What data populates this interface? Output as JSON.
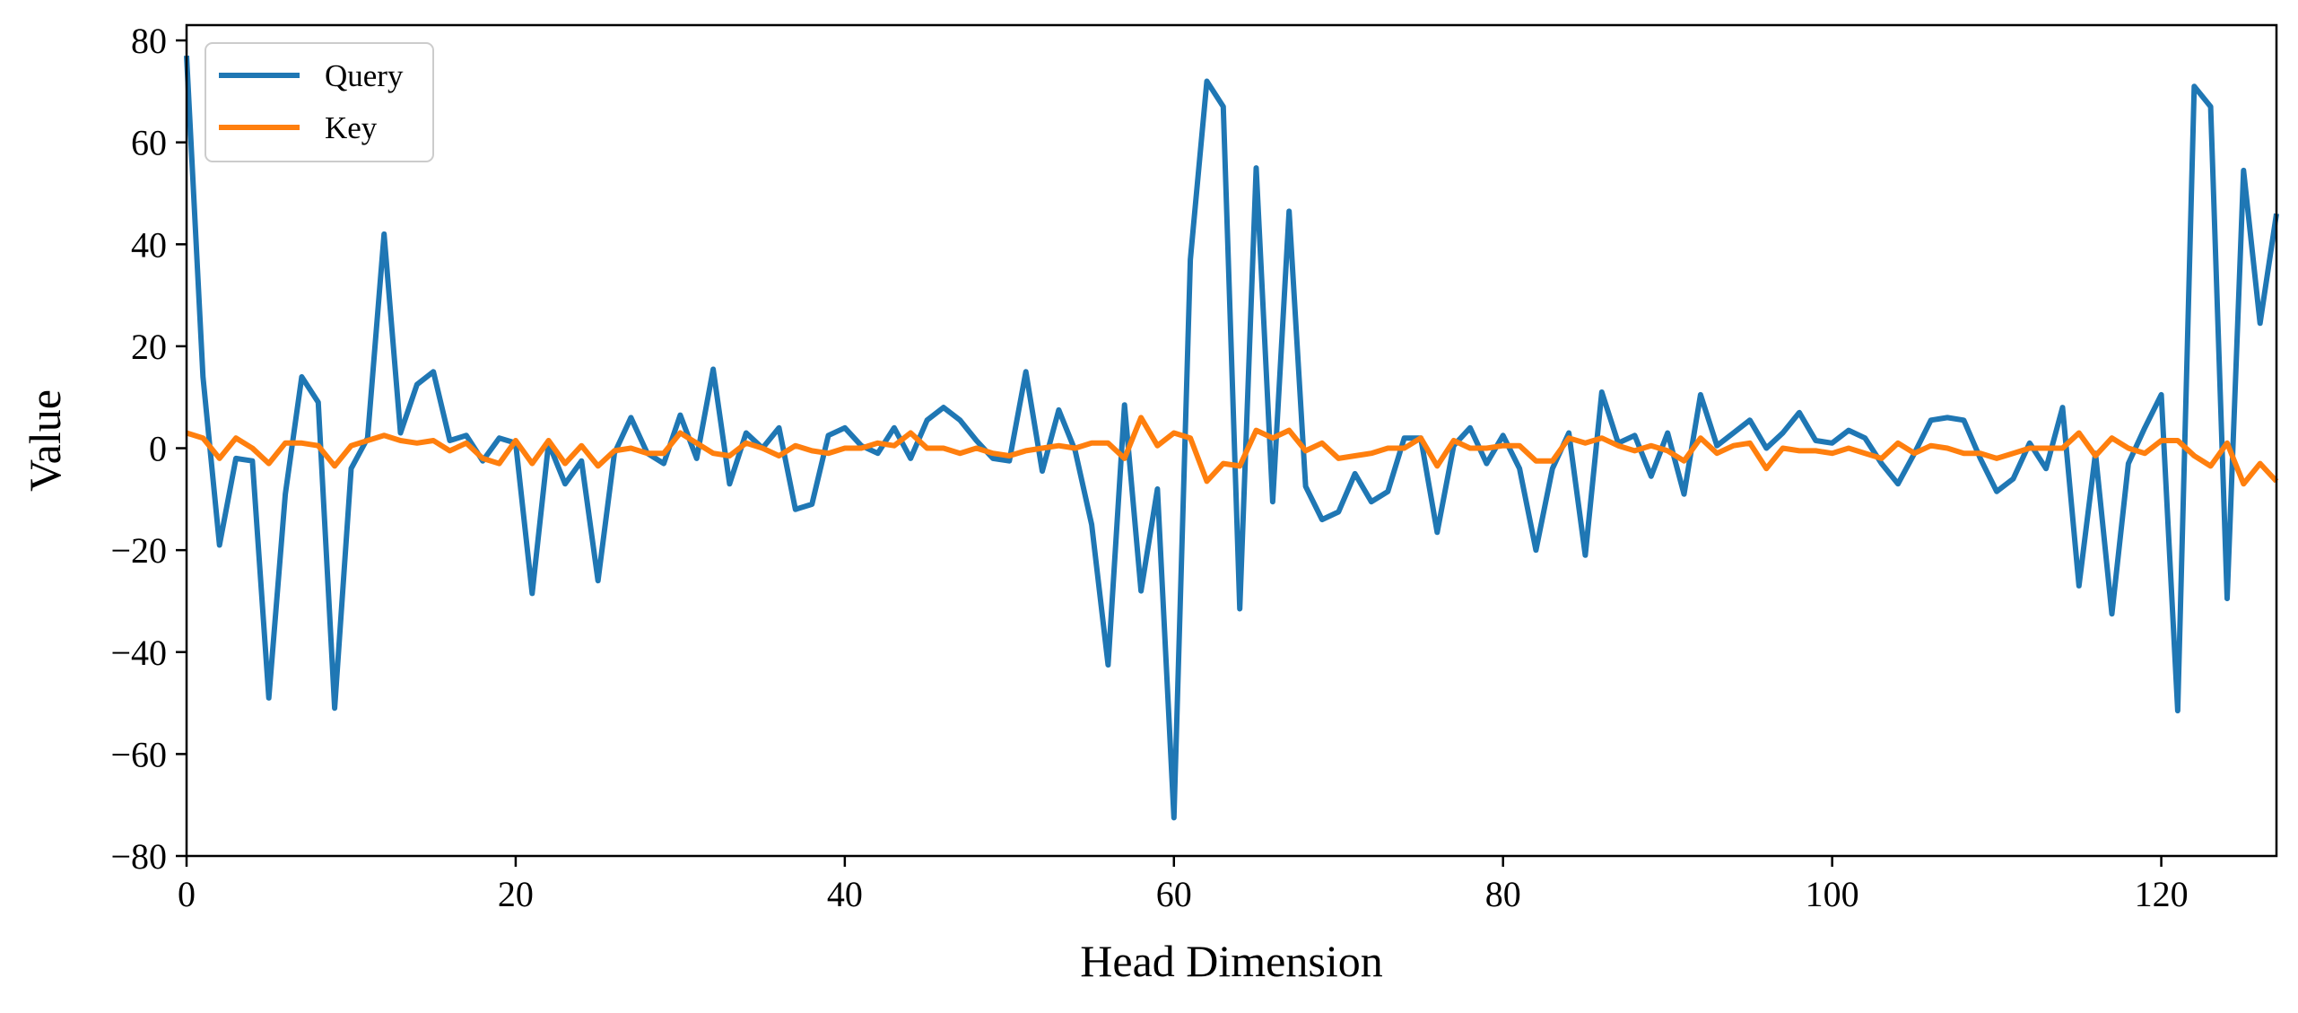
{
  "chart_data": {
    "type": "line",
    "title": "",
    "xlabel": "Head Dimension",
    "ylabel": "Value",
    "xlim": [
      0,
      127
    ],
    "ylim": [
      -80,
      83
    ],
    "xticks": [
      0,
      20,
      40,
      60,
      80,
      100,
      120
    ],
    "yticks": [
      -80,
      -60,
      -40,
      -20,
      0,
      20,
      40,
      60,
      80
    ],
    "xtick_labels": [
      "0",
      "20",
      "40",
      "60",
      "80",
      "100",
      "120"
    ],
    "ytick_labels": [
      "−80",
      "−60",
      "−40",
      "−20",
      "0",
      "20",
      "40",
      "60",
      "80"
    ],
    "grid": false,
    "legend_position": "top-left",
    "series": [
      {
        "name": "Query",
        "color": "#1f77b4",
        "x": [
          0,
          1,
          2,
          3,
          4,
          5,
          6,
          7,
          8,
          9,
          10,
          11,
          12,
          13,
          14,
          15,
          16,
          17,
          18,
          19,
          20,
          21,
          22,
          23,
          24,
          25,
          26,
          27,
          28,
          29,
          30,
          31,
          32,
          33,
          34,
          35,
          36,
          37,
          38,
          39,
          40,
          41,
          42,
          43,
          44,
          45,
          46,
          47,
          48,
          49,
          50,
          51,
          52,
          53,
          54,
          55,
          56,
          57,
          58,
          59,
          60,
          61,
          62,
          63,
          64,
          65,
          66,
          67,
          68,
          69,
          70,
          71,
          72,
          73,
          74,
          75,
          76,
          77,
          78,
          79,
          80,
          81,
          82,
          83,
          84,
          85,
          86,
          87,
          88,
          89,
          90,
          91,
          92,
          93,
          94,
          95,
          96,
          97,
          98,
          99,
          100,
          101,
          102,
          103,
          104,
          105,
          106,
          107,
          108,
          109,
          110,
          111,
          112,
          113,
          114,
          115,
          116,
          117,
          118,
          119,
          120,
          121,
          122,
          123,
          124,
          125,
          126,
          127
        ],
        "values": [
          77,
          14,
          -19,
          -2,
          -2.5,
          -49,
          -9,
          14,
          9,
          -51,
          -4,
          2,
          42,
          3,
          12.5,
          15,
          1.5,
          2.5,
          -2.5,
          2,
          1,
          -28.5,
          1,
          -7,
          -2.5,
          -26,
          -1,
          6,
          -1,
          -3,
          6.5,
          -2,
          15.5,
          -7,
          3,
          0,
          4,
          -12,
          -11,
          2.5,
          4,
          0.5,
          -1,
          4,
          -2,
          5.5,
          8,
          5.5,
          1.5,
          -2,
          -2.5,
          15,
          -4.5,
          7.5,
          -0.5,
          -15,
          -42.5,
          8.5,
          -28,
          -8,
          -72.5,
          37,
          72,
          67,
          -31.5,
          55,
          -10.5,
          46.5,
          -7.5,
          -14,
          -12.5,
          -5,
          -10.5,
          -8.5,
          2,
          2,
          -16.5,
          0.5,
          4,
          -3,
          2.5,
          -4,
          -20,
          -4,
          3,
          -21,
          11,
          1,
          2.5,
          -5.5,
          3,
          -9,
          10.5,
          0.5,
          3,
          5.5,
          0,
          3,
          7,
          1.5,
          1,
          3.5,
          2,
          -3,
          -7,
          -1,
          5.5,
          6,
          5.5,
          -2,
          -8.5,
          -6,
          1,
          -4,
          8,
          -27,
          -1,
          -32.5,
          -3,
          4,
          10.5,
          -51.5,
          71,
          67,
          -29.5,
          54.5,
          24.5,
          46
        ]
      },
      {
        "name": "Key",
        "color": "#ff7f0e",
        "x": [
          0,
          1,
          2,
          3,
          4,
          5,
          6,
          7,
          8,
          9,
          10,
          11,
          12,
          13,
          14,
          15,
          16,
          17,
          18,
          19,
          20,
          21,
          22,
          23,
          24,
          25,
          26,
          27,
          28,
          29,
          30,
          31,
          32,
          33,
          34,
          35,
          36,
          37,
          38,
          39,
          40,
          41,
          42,
          43,
          44,
          45,
          46,
          47,
          48,
          49,
          50,
          51,
          52,
          53,
          54,
          55,
          56,
          57,
          58,
          59,
          60,
          61,
          62,
          63,
          64,
          65,
          66,
          67,
          68,
          69,
          70,
          71,
          72,
          73,
          74,
          75,
          76,
          77,
          78,
          79,
          80,
          81,
          82,
          83,
          84,
          85,
          86,
          87,
          88,
          89,
          90,
          91,
          92,
          93,
          94,
          95,
          96,
          97,
          98,
          99,
          100,
          101,
          102,
          103,
          104,
          105,
          106,
          107,
          108,
          109,
          110,
          111,
          112,
          113,
          114,
          115,
          116,
          117,
          118,
          119,
          120,
          121,
          122,
          123,
          124,
          125,
          126,
          127
        ],
        "values": [
          3,
          2,
          -2,
          2,
          0,
          -3,
          1,
          1,
          0.5,
          -3.5,
          0.5,
          1.5,
          2.5,
          1.5,
          1,
          1.5,
          -0.5,
          1,
          -2,
          -3,
          1.5,
          -3,
          1.5,
          -3,
          0.5,
          -3.5,
          -0.5,
          0,
          -1,
          -1,
          3,
          1,
          -1,
          -1.5,
          1,
          0,
          -1.5,
          0.5,
          -0.5,
          -1,
          0,
          0,
          1,
          0.5,
          3,
          0,
          0,
          -1,
          0,
          -1,
          -1.5,
          -0.5,
          0,
          0.5,
          0,
          1,
          1,
          -2,
          6,
          0.5,
          3,
          2,
          -6.5,
          -3,
          -3.5,
          3.5,
          2,
          3.5,
          -0.5,
          1,
          -2,
          -1.5,
          -1,
          0,
          0,
          2,
          -3.5,
          1.5,
          0,
          0,
          0.5,
          0.5,
          -2.5,
          -2.5,
          2,
          1,
          2,
          0.5,
          -0.5,
          0.5,
          -0.5,
          -2.5,
          2,
          -1,
          0.5,
          1,
          -4,
          0,
          -0.5,
          -0.5,
          -1,
          0,
          -1,
          -2,
          1,
          -1,
          0.5,
          0,
          -1,
          -1,
          -2,
          -1,
          0,
          0,
          0,
          3,
          -1.5,
          2,
          0,
          -1,
          1.5,
          1.5,
          -1.5,
          -3.5,
          1,
          -7,
          -3,
          -6.5
        ]
      }
    ]
  }
}
